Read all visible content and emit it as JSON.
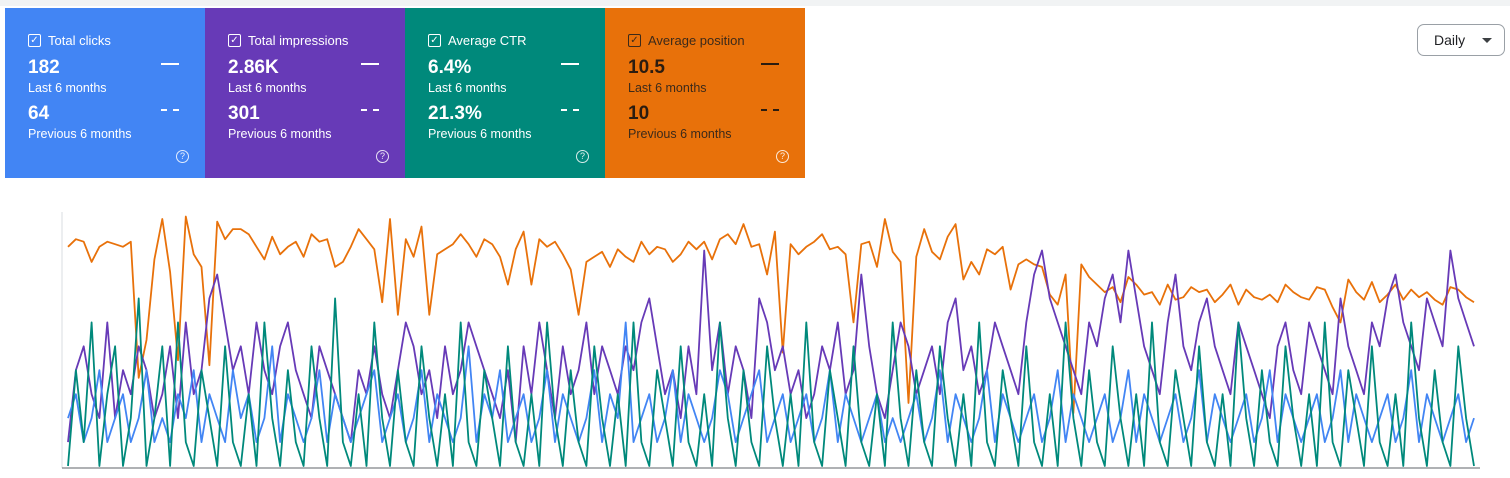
{
  "cards": [
    {
      "label": "Total clicks",
      "current": "182",
      "current_period": "Last 6 months",
      "previous": "64",
      "previous_period": "Previous 6 months",
      "color": "#4285f4"
    },
    {
      "label": "Total impressions",
      "current": "2.86K",
      "current_period": "Last 6 months",
      "previous": "301",
      "previous_period": "Previous 6 months",
      "color": "#673ab7"
    },
    {
      "label": "Average CTR",
      "current": "6.4%",
      "current_period": "Last 6 months",
      "previous": "21.3%",
      "previous_period": "Previous 6 months",
      "color": "#00897b"
    },
    {
      "label": "Average position",
      "current": "10.5",
      "current_period": "Last 6 months",
      "previous": "10",
      "previous_period": "Previous 6 months",
      "color": "#e8710a"
    }
  ],
  "period_select": {
    "value": "Daily"
  },
  "chart_data": {
    "type": "line",
    "x_days": 180,
    "legend": "none",
    "grid": false,
    "series": [
      {
        "name": "Average position",
        "color": "#e8710a",
        "style": "solid",
        "values": [
          1.3,
          1.0,
          1.1,
          1.9,
          1.3,
          1.1,
          1.2,
          1.3,
          1.1,
          6.5,
          5.0,
          1.8,
          0.2,
          2.3,
          5.8,
          0.1,
          1.6,
          2.1,
          6.0,
          0.3,
          1.0,
          0.6,
          0.6,
          0.8,
          1.3,
          1.8,
          0.9,
          1.6,
          1.3,
          1.1,
          1.7,
          0.8,
          1.1,
          1.0,
          2.1,
          1.9,
          1.3,
          0.6,
          1.0,
          1.4,
          3.5,
          0.2,
          4.0,
          1.0,
          1.7,
          0.5,
          4.0,
          1.6,
          1.4,
          1.2,
          0.8,
          1.2,
          1.7,
          1.0,
          1.2,
          1.7,
          2.8,
          1.4,
          0.7,
          2.8,
          1.0,
          1.3,
          1.1,
          1.6,
          2.2,
          4.0,
          1.9,
          1.7,
          1.5,
          2.1,
          1.4,
          1.7,
          1.9,
          1.1,
          1.6,
          1.3,
          1.4,
          1.9,
          1.6,
          1.1,
          1.4,
          1.1,
          1.8,
          1.0,
          0.8,
          1.2,
          0.4,
          1.3,
          1.2,
          2.4,
          0.7,
          5.5,
          1.2,
          1.6,
          1.3,
          1.1,
          0.8,
          1.4,
          1.3,
          1.6,
          4.3,
          1.2,
          1.1,
          2.1,
          0.2,
          1.5,
          1.9,
          7.5,
          1.7,
          0.6,
          1.5,
          1.8,
          0.9,
          0.4,
          2.6,
          1.9,
          2.4,
          1.4,
          1.6,
          1.3,
          3.0,
          2.0,
          1.8,
          2.0,
          2.1,
          3.2,
          3.6,
          2.4,
          7.9,
          2.0,
          2.5,
          2.8,
          3.1,
          2.9,
          3.5,
          2.5,
          2.8,
          3.2,
          3.1,
          3.6,
          2.8,
          3.4,
          3.3,
          2.9,
          3.1,
          3.0,
          3.5,
          3.2,
          2.8,
          3.6,
          3.0,
          3.3,
          3.4,
          3.2,
          3.5,
          2.8,
          3.1,
          3.3,
          3.4,
          2.9,
          3.0,
          3.7,
          4.3,
          2.6,
          3.1,
          3.4,
          2.7,
          3.5,
          3.2,
          2.8,
          3.4,
          3.0,
          3.3,
          3.1,
          3.4,
          3.6,
          2.9,
          3.0,
          3.3,
          3.5
        ]
      },
      {
        "name": "Total impressions",
        "color": "#673ab7",
        "style": "solid",
        "values": [
          1,
          4,
          5,
          3,
          2,
          6,
          2,
          4,
          3,
          5,
          4,
          2,
          3,
          5,
          2,
          6,
          3,
          4,
          7,
          8,
          6,
          4,
          5,
          3,
          6,
          4,
          3,
          5,
          6,
          4,
          3,
          2,
          5,
          4,
          3,
          2,
          1,
          4,
          3,
          5,
          3,
          2,
          4,
          6,
          5,
          3,
          4,
          2,
          5,
          3,
          4,
          6,
          5,
          4,
          3,
          2,
          4,
          1,
          5,
          3,
          6,
          4,
          2,
          5,
          3,
          4,
          6,
          3,
          5,
          4,
          3,
          5,
          4,
          6,
          7,
          5,
          3,
          4,
          2,
          5,
          3,
          9,
          4,
          6,
          3,
          5,
          4,
          2,
          7,
          6,
          4,
          5,
          3,
          4,
          2,
          3,
          5,
          4,
          6,
          3,
          4,
          8,
          5,
          3,
          2,
          4,
          6,
          5,
          3,
          4,
          5,
          3,
          6,
          7,
          4,
          5,
          3,
          4,
          6,
          5,
          4,
          3,
          6,
          8,
          9,
          7,
          6,
          5,
          4,
          3,
          6,
          5,
          7,
          8,
          6,
          9,
          7,
          5,
          4,
          3,
          6,
          8,
          5,
          4,
          6,
          7,
          5,
          4,
          3,
          6,
          5,
          4,
          3,
          2,
          5,
          6,
          4,
          3,
          6,
          5,
          4,
          3,
          7,
          5,
          4,
          3,
          6,
          5,
          7,
          8,
          6,
          5,
          4,
          7,
          6,
          5,
          9,
          7,
          6,
          5
        ]
      },
      {
        "name": "Total clicks",
        "color": "#4285f4",
        "style": "solid",
        "values": [
          2,
          3,
          1,
          2,
          4,
          1,
          2,
          3,
          1,
          2,
          4,
          1,
          2,
          1,
          3,
          2,
          4,
          1,
          3,
          2,
          1,
          4,
          2,
          3,
          1,
          2,
          5,
          1,
          3,
          2,
          1,
          2,
          4,
          1,
          3,
          2,
          1,
          2,
          3,
          4,
          1,
          2,
          3,
          1,
          2,
          4,
          1,
          3,
          2,
          1,
          2,
          5,
          1,
          3,
          2,
          4,
          1,
          2,
          3,
          1,
          2,
          4,
          1,
          3,
          2,
          1,
          2,
          4,
          1,
          3,
          2,
          6,
          1,
          2,
          3,
          1,
          2,
          4,
          1,
          3,
          2,
          1,
          2,
          4,
          3,
          1,
          2,
          3,
          4,
          1,
          2,
          3,
          1,
          2,
          3,
          1,
          2,
          4,
          1,
          3,
          2,
          1,
          2,
          3,
          1,
          2,
          1,
          2,
          3,
          1,
          2,
          4,
          1,
          3,
          2,
          1,
          2,
          4,
          1,
          3,
          2,
          1,
          2,
          3,
          1,
          2,
          4,
          1,
          3,
          2,
          1,
          2,
          3,
          1,
          2,
          4,
          1,
          3,
          2,
          1,
          2,
          3,
          1,
          2,
          4,
          1,
          3,
          2,
          1,
          2,
          3,
          1,
          2,
          4,
          1,
          3,
          2,
          1,
          2,
          3,
          1,
          2,
          4,
          1,
          3,
          2,
          1,
          2,
          3,
          1,
          2,
          4,
          1,
          3,
          2,
          1,
          2,
          3,
          1,
          2
        ]
      },
      {
        "name": "Average CTR",
        "color": "#00897b",
        "style": "solid",
        "values": [
          0,
          4,
          1,
          6,
          0,
          3,
          5,
          0,
          2,
          7,
          0,
          2,
          5,
          0,
          6,
          1,
          0,
          4,
          2,
          0,
          5,
          1,
          0,
          3,
          0,
          6,
          2,
          0,
          4,
          1,
          0,
          5,
          2,
          0,
          7,
          1,
          0,
          3,
          0,
          6,
          2,
          0,
          4,
          1,
          0,
          5,
          2,
          0,
          3,
          0,
          6,
          1,
          0,
          4,
          2,
          0,
          5,
          1,
          0,
          3,
          0,
          6,
          2,
          0,
          4,
          1,
          0,
          5,
          2,
          0,
          3,
          0,
          6,
          1,
          0,
          4,
          2,
          0,
          5,
          1,
          0,
          3,
          0,
          6,
          2,
          0,
          4,
          1,
          0,
          5,
          2,
          0,
          3,
          0,
          6,
          1,
          0,
          4,
          2,
          0,
          5,
          1,
          0,
          3,
          0,
          6,
          2,
          0,
          4,
          1,
          0,
          5,
          2,
          0,
          3,
          0,
          6,
          1,
          0,
          4,
          2,
          0,
          5,
          1,
          0,
          3,
          0,
          6,
          2,
          0,
          4,
          1,
          0,
          5,
          2,
          0,
          3,
          0,
          6,
          1,
          0,
          4,
          2,
          0,
          5,
          1,
          0,
          3,
          0,
          6,
          2,
          0,
          4,
          1,
          0,
          5,
          2,
          0,
          3,
          0,
          6,
          1,
          0,
          4,
          2,
          0,
          5,
          1,
          0,
          3,
          0,
          6,
          2,
          0,
          4,
          1,
          0,
          5,
          2,
          0
        ]
      }
    ]
  }
}
